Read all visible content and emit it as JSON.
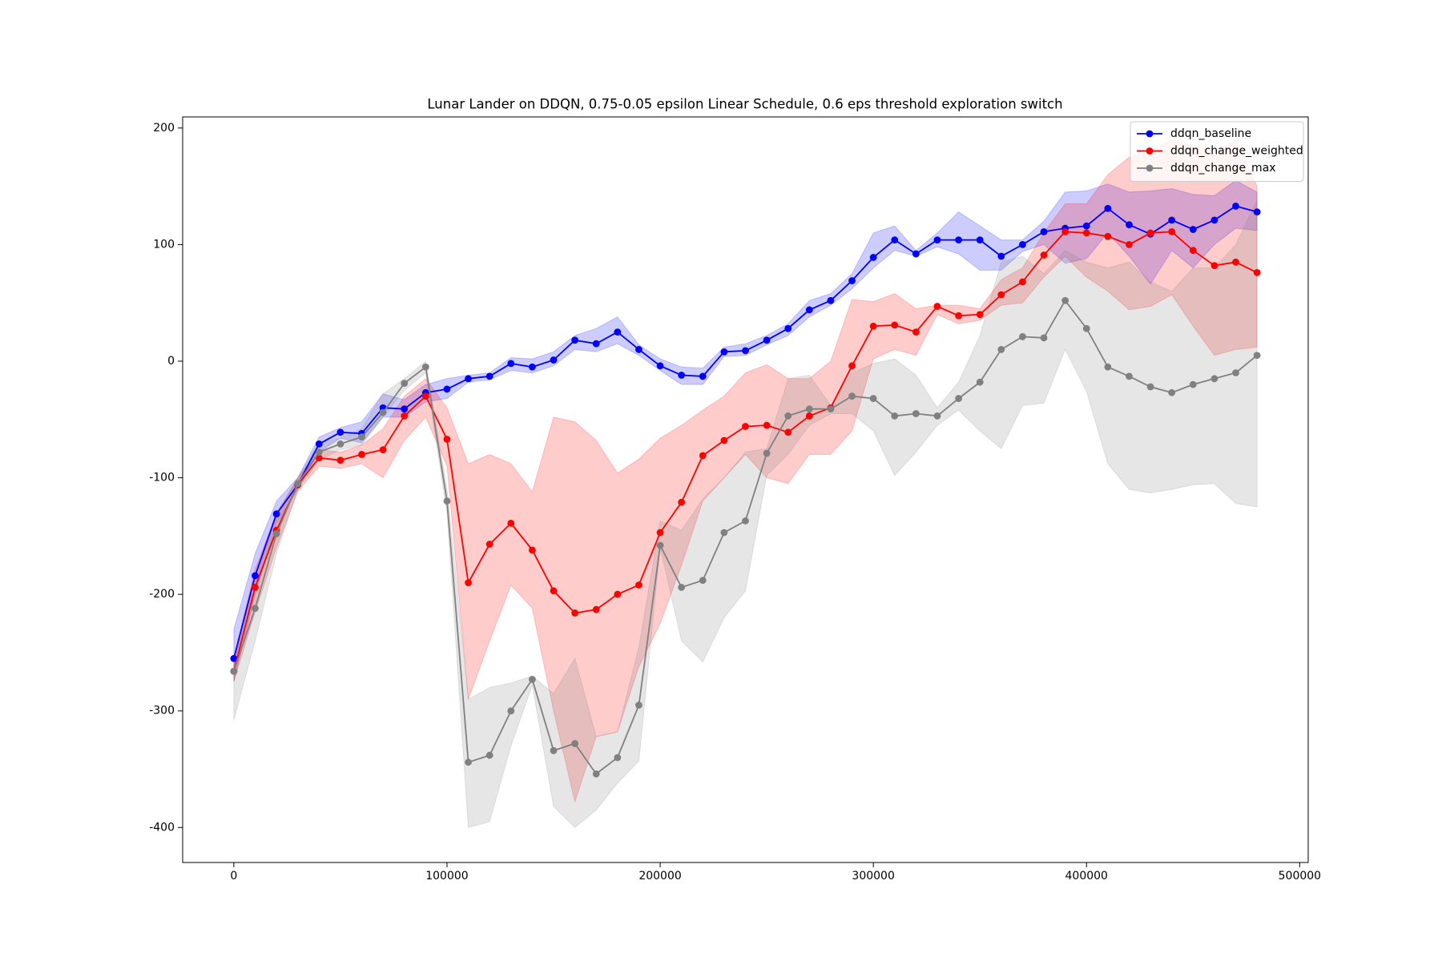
{
  "chart_data": {
    "type": "line",
    "title": "Lunar Lander on DDQN, 0.75-0.05 epsilon Linear Schedule, 0.6 eps threshold exploration switch",
    "x": [
      0,
      10000,
      20000,
      30000,
      40000,
      50000,
      60000,
      70000,
      80000,
      90000,
      100000,
      110000,
      120000,
      130000,
      140000,
      150000,
      160000,
      170000,
      180000,
      190000,
      200000,
      210000,
      220000,
      230000,
      240000,
      250000,
      260000,
      270000,
      280000,
      290000,
      300000,
      310000,
      320000,
      330000,
      340000,
      350000,
      360000,
      370000,
      380000,
      390000,
      400000,
      410000,
      420000,
      430000,
      440000,
      450000,
      460000,
      470000,
      480000
    ],
    "series": [
      {
        "name": "ddqn_baseline",
        "color": "#0000ff",
        "values": [
          -255,
          -184,
          -131,
          -106,
          -71,
          -61,
          -62,
          -40,
          -41,
          -27,
          -24,
          -15,
          -13,
          -2,
          -5,
          1,
          18,
          15,
          25,
          10,
          -4,
          -12,
          -13,
          8,
          9,
          18,
          28,
          44,
          52,
          69,
          89,
          104,
          92,
          104,
          104,
          104,
          90,
          100,
          111,
          114,
          116,
          131,
          117,
          109,
          121,
          113,
          121,
          133,
          128
        ],
        "lower": [
          -275,
          -200,
          -140,
          -110,
          -78,
          -66,
          -70,
          -48,
          -48,
          -35,
          -32,
          -18,
          -16,
          -8,
          -10,
          -4,
          10,
          8,
          15,
          5,
          -8,
          -20,
          -20,
          4,
          5,
          14,
          22,
          38,
          48,
          62,
          80,
          95,
          90,
          98,
          92,
          78,
          78,
          94,
          100,
          84,
          88,
          110,
          90,
          66,
          95,
          80,
          100,
          114,
          112
        ],
        "upper": [
          -230,
          -165,
          -120,
          -100,
          -65,
          -57,
          -52,
          -28,
          -33,
          -20,
          -15,
          -12,
          -10,
          3,
          2,
          8,
          22,
          28,
          38,
          14,
          2,
          -5,
          -6,
          12,
          15,
          22,
          32,
          52,
          58,
          75,
          110,
          116,
          95,
          110,
          128,
          116,
          104,
          104,
          120,
          145,
          146,
          152,
          145,
          146,
          148,
          143,
          142,
          155,
          145
        ]
      },
      {
        "name": "ddqn_change_weighted",
        "color": "#ff0000",
        "values": [
          -266,
          -194,
          -145,
          -106,
          -83,
          -85,
          -80,
          -76,
          -47,
          -30,
          -67,
          -190,
          -157,
          -139,
          -162,
          -197,
          -216,
          -213,
          -200,
          -192,
          -147,
          -121,
          -81,
          -68,
          -56,
          -55,
          -61,
          -47,
          -40,
          -4,
          30,
          31,
          25,
          47,
          39,
          40,
          57,
          68,
          91,
          111,
          110,
          107,
          100,
          110,
          111,
          95,
          82,
          85,
          76
        ],
        "lower": [
          -275,
          -215,
          -160,
          -112,
          -90,
          -92,
          -88,
          -100,
          -68,
          -48,
          -90,
          -290,
          -240,
          -192,
          -212,
          -300,
          -378,
          -322,
          -318,
          -262,
          -225,
          -175,
          -120,
          -100,
          -80,
          -100,
          -105,
          -80,
          -80,
          -60,
          2,
          10,
          5,
          40,
          32,
          35,
          48,
          50,
          72,
          90,
          72,
          60,
          44,
          47,
          57,
          30,
          5,
          10,
          12
        ],
        "upper": [
          -255,
          -178,
          -132,
          -100,
          -76,
          -78,
          -72,
          -58,
          -30,
          -15,
          -40,
          -88,
          -80,
          -88,
          -112,
          -48,
          -52,
          -68,
          -96,
          -84,
          -66,
          -55,
          -42,
          -30,
          -10,
          -3,
          -15,
          -15,
          0,
          53,
          51,
          58,
          45,
          48,
          48,
          45,
          70,
          80,
          110,
          135,
          135,
          160,
          175,
          180,
          190,
          185,
          180,
          190,
          150
        ]
      },
      {
        "name": "ddqn_change_max",
        "color": "#808080",
        "values": [
          -266,
          -212,
          -148,
          -105,
          -78,
          -71,
          -65,
          -44,
          -19,
          -5,
          -120,
          -344,
          -338,
          -300,
          -273,
          -334,
          -328,
          -354,
          -340,
          -295,
          -158,
          -194,
          -188,
          -147,
          -137,
          -79,
          -47,
          -41,
          -41,
          -30,
          -32,
          -47,
          -45,
          -47,
          -32,
          -18,
          10,
          21,
          20,
          52,
          28,
          -5,
          -13,
          -22,
          -27,
          -20,
          -15,
          -10,
          5
        ],
        "lower": [
          -308,
          -240,
          -165,
          -110,
          -85,
          -76,
          -72,
          -48,
          -25,
          -10,
          -130,
          -400,
          -395,
          -330,
          -278,
          -382,
          -400,
          -385,
          -362,
          -343,
          -160,
          -240,
          -258,
          -220,
          -197,
          -98,
          -80,
          -55,
          -45,
          -45,
          -60,
          -98,
          -78,
          -55,
          -42,
          -60,
          -75,
          -38,
          -36,
          10,
          -26,
          -88,
          -110,
          -113,
          -110,
          -106,
          -105,
          -122,
          -125
        ],
        "upper": [
          -258,
          -190,
          -130,
          -100,
          -70,
          -66,
          -58,
          -28,
          -15,
          0,
          -110,
          -290,
          -280,
          -276,
          -270,
          -285,
          -255,
          -322,
          -318,
          -245,
          -137,
          -145,
          -118,
          -100,
          -78,
          -75,
          -15,
          -12,
          -38,
          -10,
          -2,
          2,
          -12,
          -40,
          -18,
          22,
          85,
          90,
          75,
          95,
          85,
          80,
          85,
          68,
          60,
          80,
          80,
          100,
          138
        ]
      }
    ],
    "xlim": [
      -24000,
      504000
    ],
    "ylim": [
      -430,
      209.5
    ],
    "xticks": [
      0,
      100000,
      200000,
      300000,
      400000,
      500000
    ],
    "yticks": [
      -400,
      -300,
      -200,
      -100,
      0,
      100,
      200
    ],
    "legend": "upper right",
    "band_alpha": 0.2
  }
}
